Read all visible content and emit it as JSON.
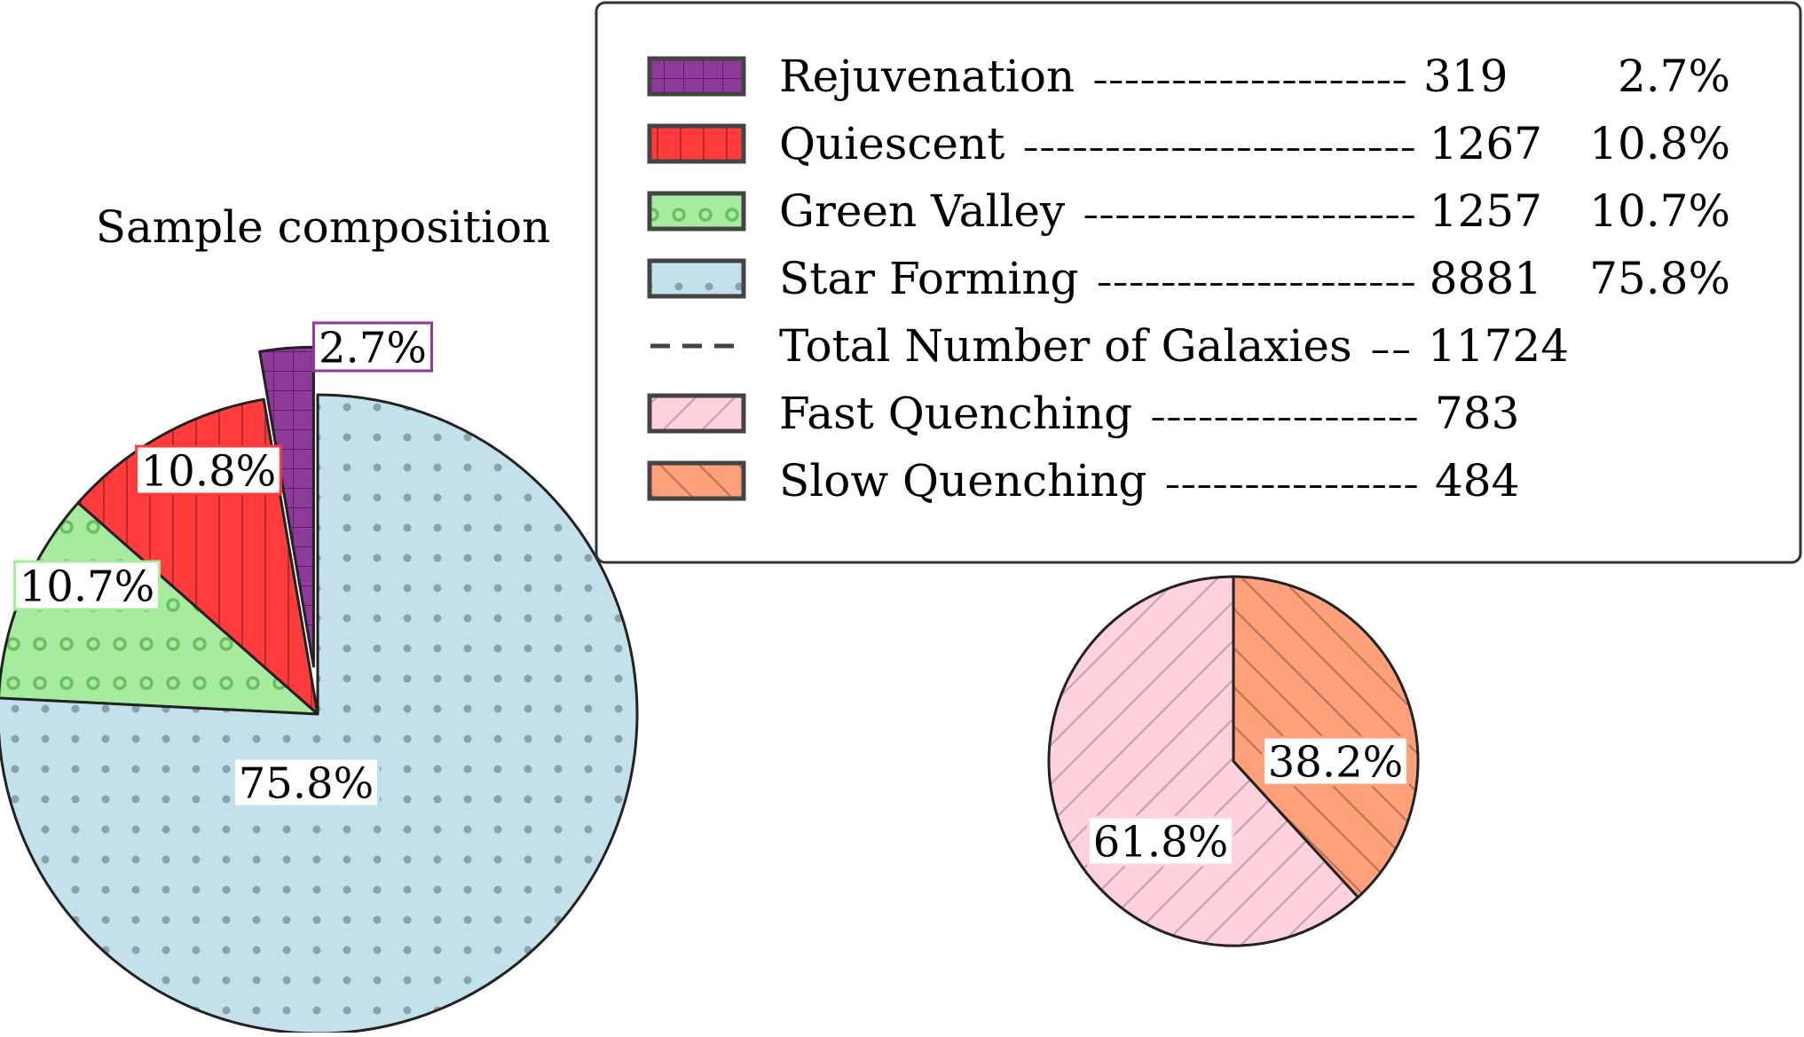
{
  "chart_data": [
    {
      "type": "pie",
      "title": "Sample composition",
      "slices": [
        {
          "name": "Rejuvenation",
          "count": 319,
          "percent": 2.7,
          "label": "2.7%",
          "color": "#8e3a99",
          "hatch": "grid",
          "exploded": true
        },
        {
          "name": "Quiescent",
          "count": 1267,
          "percent": 10.8,
          "label": "10.8%",
          "color": "#ff3b3b",
          "hatch": "vertical"
        },
        {
          "name": "Green Valley",
          "count": 1257,
          "percent": 10.7,
          "label": "10.7%",
          "color": "#a7ec9e",
          "hatch": "rings"
        },
        {
          "name": "Star Forming",
          "count": 8881,
          "percent": 75.8,
          "label": "75.8%",
          "color": "#c3e1ea",
          "hatch": "dots"
        }
      ]
    },
    {
      "type": "pie",
      "title": "",
      "slices": [
        {
          "name": "Fast Quenching",
          "count": 783,
          "percent": 61.8,
          "label": "61.8%",
          "color": "#ffd1dc",
          "hatch": "diagonal"
        },
        {
          "name": "Slow Quenching",
          "count": 484,
          "percent": 38.2,
          "label": "38.2%",
          "color": "#ffa07a",
          "hatch": "back-diagonal"
        }
      ]
    }
  ],
  "legend": {
    "placement": "top-right",
    "entries": [
      {
        "name": "Rejuvenation",
        "dashes": "--------------------",
        "count": "319",
        "percent": "2.7%",
        "color": "#8e3a99",
        "hatch": "grid"
      },
      {
        "name": "Quiescent",
        "dashes": "------------------------",
        "count": "1267",
        "percent": "10.8%",
        "color": "#ff3b3b",
        "hatch": "vertical"
      },
      {
        "name": "Green Valley",
        "dashes": "---------------------",
        "count": "1257",
        "percent": "10.7%",
        "color": "#a7ec9e",
        "hatch": "rings"
      },
      {
        "name": "Star Forming",
        "dashes": "--------------------",
        "count": "8881",
        "percent": "75.8%",
        "color": "#c3e1ea",
        "hatch": "dots"
      },
      {
        "name": "Total Number of Galaxies",
        "dashes": "--",
        "count": "11724",
        "percent": "",
        "color": "#444444",
        "hatch": "line"
      },
      {
        "name": "Fast Quenching",
        "dashes": "-----------------",
        "count": "783",
        "percent": "",
        "color": "#ffd1dc",
        "hatch": "diagonal"
      },
      {
        "name": "Slow Quenching",
        "dashes": "----------------",
        "count": "484",
        "percent": "",
        "color": "#ffa07a",
        "hatch": "back-diagonal"
      }
    ]
  },
  "colors": {
    "edge": "#222222",
    "legend_frame": "#333333"
  }
}
